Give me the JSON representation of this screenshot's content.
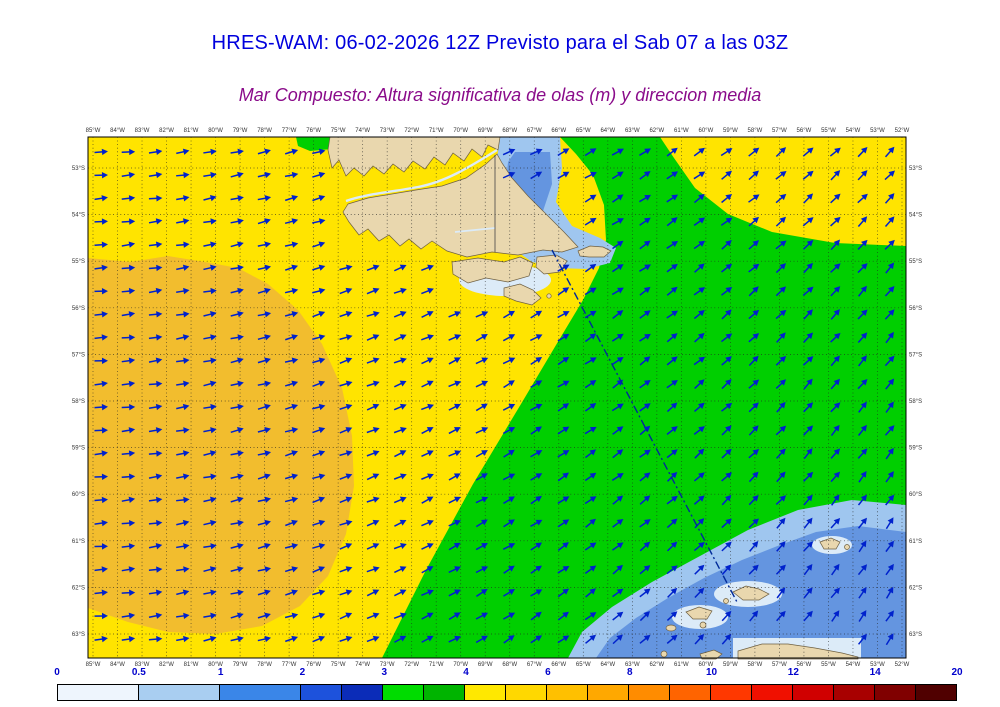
{
  "title": "HRES-WAM: 06-02-2026 12Z Previsto para el Sab 07 a las 03Z",
  "title_color": "#0000dd",
  "subtitle": "Mar Compuesto: Altura significativa de olas (m) y direccion media",
  "subtitle_color": "#8a0b8a",
  "map": {
    "lon_labels": [
      "85°W",
      "84°W",
      "83°W",
      "82°W",
      "81°W",
      "80°W",
      "79°W",
      "78°W",
      "77°W",
      "76°W",
      "75°W",
      "74°W",
      "73°W",
      "72°W",
      "71°W",
      "70°W",
      "69°W",
      "68°W",
      "67°W",
      "66°W",
      "65°W",
      "64°W",
      "63°W",
      "62°W",
      "61°W",
      "60°W",
      "59°W",
      "58°W",
      "57°W",
      "56°W",
      "55°W",
      "54°W",
      "53°W",
      "52°W"
    ],
    "lat_labels": [
      "53°S",
      "54°S",
      "55°S",
      "56°S",
      "57°S",
      "58°S",
      "59°S",
      "60°S",
      "61°S",
      "62°S",
      "63°S"
    ],
    "arrow_grid": {
      "cols": 30,
      "rows": 22,
      "direction": "E rotating to NE toward east"
    },
    "colors": {
      "sea": "#ffe400",
      "swell_high": "#f2bd2e",
      "swell_green": "#00cf00",
      "sea_blue": "#6495e0",
      "sea_lightblue": "#9fc6ef",
      "sea_pale": "#dcebf8",
      "land": "#e9d7ae",
      "land_outline": "#6e5f41",
      "arrow": "#0022cc",
      "route": "#002a99",
      "grid": "#222222",
      "axis_text": "#333333",
      "frame": "#000000"
    }
  },
  "colorbar": {
    "label_color": "#0000cc",
    "segments": [
      {
        "c": "#eef5fd",
        "w": 2
      },
      {
        "c": "#a9cef1",
        "w": 2
      },
      {
        "c": "#3a86e8",
        "w": 2
      },
      {
        "c": "#1d52dc",
        "w": 1
      },
      {
        "c": "#0b2cb8",
        "w": 1
      },
      {
        "c": "#00dc00",
        "w": 1
      },
      {
        "c": "#00b400",
        "w": 1
      },
      {
        "c": "#ffe800",
        "w": 1
      },
      {
        "c": "#ffd800",
        "w": 1
      },
      {
        "c": "#ffc000",
        "w": 1
      },
      {
        "c": "#ffa800",
        "w": 1
      },
      {
        "c": "#ff8c00",
        "w": 1
      },
      {
        "c": "#ff6400",
        "w": 1
      },
      {
        "c": "#ff3800",
        "w": 1
      },
      {
        "c": "#f01000",
        "w": 1
      },
      {
        "c": "#d00000",
        "w": 1
      },
      {
        "c": "#a80000",
        "w": 1
      },
      {
        "c": "#800000",
        "w": 1
      },
      {
        "c": "#500000",
        "w": 1
      }
    ],
    "labels": [
      {
        "t": "0",
        "u": 0
      },
      {
        "t": "0.5",
        "u": 2
      },
      {
        "t": "1",
        "u": 4
      },
      {
        "t": "2",
        "u": 6
      },
      {
        "t": "3",
        "u": 8
      },
      {
        "t": "4",
        "u": 10
      },
      {
        "t": "6",
        "u": 12
      },
      {
        "t": "8",
        "u": 14
      },
      {
        "t": "10",
        "u": 16
      },
      {
        "t": "12",
        "u": 18
      },
      {
        "t": "14",
        "u": 20
      },
      {
        "t": "20",
        "u": 22
      }
    ]
  }
}
